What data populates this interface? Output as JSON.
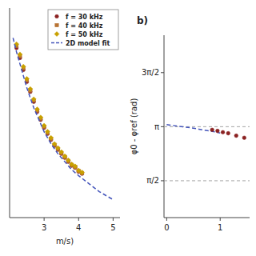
{
  "chart_data": [
    {
      "type": "scatter",
      "xlabel": "m/s)",
      "xlim": [
        2.0,
        5.2
      ],
      "xticks": [
        3,
        4,
        5
      ],
      "ylim": [
        0.1,
        1.15
      ],
      "tick_labels": "x",
      "legend": "upper right",
      "series": [
        {
          "name": "f = 30 kHz",
          "type": "scatter",
          "color": "#8b2222",
          "marker": "circle",
          "x": [
            2.2,
            2.3,
            2.4,
            2.5,
            2.6,
            2.7,
            2.8,
            2.9,
            3.0,
            3.1,
            3.2,
            3.3,
            3.4,
            3.5,
            3.6,
            3.7,
            3.8,
            3.9,
            4.0,
            4.1
          ],
          "values": [
            0.95,
            0.9,
            0.84,
            0.78,
            0.73,
            0.68,
            0.63,
            0.59,
            0.55,
            0.52,
            0.49,
            0.46,
            0.44,
            0.42,
            0.4,
            0.38,
            0.36,
            0.35,
            0.33,
            0.32
          ]
        },
        {
          "name": "f = 40 kHz",
          "type": "scatter",
          "color": "#b87333",
          "marker": "square",
          "x": [
            2.2,
            2.3,
            2.4,
            2.5,
            2.6,
            2.7,
            2.8,
            2.9,
            3.0,
            3.1,
            3.2,
            3.3,
            3.4,
            3.5,
            3.6,
            3.7,
            3.8,
            3.9,
            4.0,
            4.1
          ],
          "values": [
            0.9595,
            0.909,
            0.8484,
            0.7878,
            0.7373,
            0.6868,
            0.6363,
            0.5959,
            0.5555,
            0.5252,
            0.4949,
            0.4646,
            0.4444,
            0.4242,
            0.404,
            0.3838,
            0.3636,
            0.3535,
            0.3333,
            0.3232
          ]
        },
        {
          "name": "f = 50 kHz",
          "type": "scatter",
          "color": "#c8a000",
          "marker": "diamond",
          "x": [
            2.2,
            2.3,
            2.4,
            2.5,
            2.6,
            2.7,
            2.8,
            2.9,
            3.0,
            3.1,
            3.2,
            3.3,
            3.4,
            3.5,
            3.6,
            3.7,
            3.8,
            3.9,
            4.0,
            4.1
          ],
          "values": [
            0.969,
            0.918,
            0.8568,
            0.7956,
            0.7446,
            0.6936,
            0.6426,
            0.6018,
            0.561,
            0.5304,
            0.4998,
            0.4692,
            0.4488,
            0.4284,
            0.408,
            0.3876,
            0.3672,
            0.357,
            0.3366,
            0.3264
          ]
        },
        {
          "name": "2D model fit",
          "type": "line",
          "color": "#4455bb",
          "line_style": "dashed",
          "x": [
            2.1,
            2.2,
            2.3,
            2.4,
            2.5,
            2.6,
            2.7,
            2.8,
            2.9,
            3.0,
            3.2,
            3.4,
            3.6,
            3.8,
            4.0,
            4.3,
            4.6,
            5.0
          ],
          "values": [
            1.0,
            0.93,
            0.87,
            0.81,
            0.75,
            0.7,
            0.65,
            0.61,
            0.57,
            0.53,
            0.47,
            0.42,
            0.38,
            0.34,
            0.31,
            0.27,
            0.23,
            0.19
          ]
        }
      ]
    },
    {
      "type": "scatter",
      "title": "b)",
      "ylabel": "φ0 - φref (rad)",
      "xlim": [
        -0.05,
        1.55
      ],
      "ylim": [
        0.5,
        5.8
      ],
      "xticks": [
        0,
        1
      ],
      "yticks": [
        {
          "value": 1.5707963,
          "label": "π/2"
        },
        {
          "value": 3.14159265,
          "label": "π"
        },
        {
          "value": 4.71238898,
          "label": "3π/2"
        }
      ],
      "hlines": [
        3.14159265,
        1.5707963
      ],
      "series": [
        {
          "type": "line",
          "color": "#4455bb",
          "line_style": "dashed",
          "x": [
            0.0,
            0.05,
            0.1,
            0.2,
            0.3,
            0.4,
            0.5,
            0.6,
            0.7,
            0.8,
            0.9,
            1.0
          ],
          "values": [
            3.2,
            3.19,
            3.18,
            3.16,
            3.14,
            3.12,
            3.1,
            3.07,
            3.04,
            3.02,
            2.99,
            2.96
          ]
        },
        {
          "type": "scatter",
          "color": "#8b2222",
          "marker": "circle",
          "x": [
            0.85,
            0.95,
            1.05,
            1.15,
            1.3,
            1.45
          ],
          "values": [
            3.05,
            3.02,
            2.98,
            2.95,
            2.88,
            2.82
          ]
        }
      ]
    }
  ]
}
